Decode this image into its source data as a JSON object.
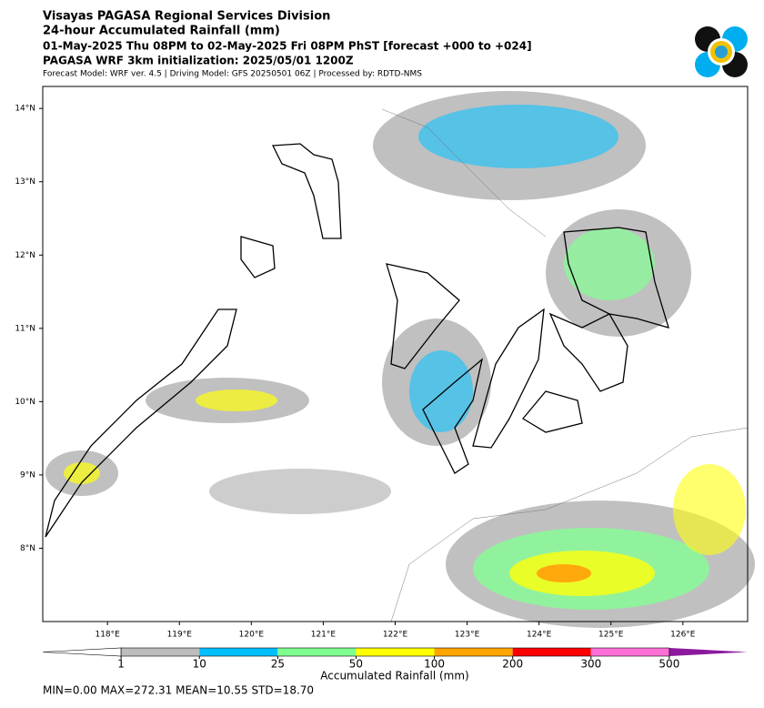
{
  "header": {
    "title": "Visayas PAGASA Regional Services Division",
    "subtitle": "24-hour Accumulated Rainfall (mm)",
    "period": "01-May-2025 Thu 08PM to 02-May-2025 Fri 08PM PhST [forecast +000 to +024]",
    "model_init": "PAGASA WRF 3km initialization: 2025/05/01 1200Z",
    "credits": "Forecast Model: WRF ver. 4.5 | Driving Model: GFS 20250501 06Z | Processed by: RDTD-NMS"
  },
  "map": {
    "xlim": [
      117.1,
      126.9
    ],
    "ylim": [
      7.0,
      14.3
    ],
    "xticks": [
      {
        "value": 118,
        "label": "118°E"
      },
      {
        "value": 119,
        "label": "119°E"
      },
      {
        "value": 120,
        "label": "120°E"
      },
      {
        "value": 121,
        "label": "121°E"
      },
      {
        "value": 122,
        "label": "122°E"
      },
      {
        "value": 123,
        "label": "123°E"
      },
      {
        "value": 124,
        "label": "124°E"
      },
      {
        "value": 125,
        "label": "125°E"
      },
      {
        "value": 126,
        "label": "126°E"
      }
    ],
    "yticks": [
      {
        "value": 8,
        "label": "8°N"
      },
      {
        "value": 9,
        "label": "9°N"
      },
      {
        "value": 10,
        "label": "10°N"
      },
      {
        "value": 11,
        "label": "11°N"
      },
      {
        "value": 12,
        "label": "12°N"
      },
      {
        "value": 13,
        "label": "13°N"
      },
      {
        "value": 14,
        "label": "14°N"
      }
    ]
  },
  "colorbar": {
    "label": "Accumulated Rainfall (mm)",
    "levels": [
      1,
      10,
      25,
      50,
      100,
      200,
      300,
      500
    ],
    "colors": [
      "#bdbdbd",
      "#00bfff",
      "#7fff8f",
      "#ffff00",
      "#ffa500",
      "#ff0000",
      "#ff6fd8"
    ],
    "under_color": "#ffffff",
    "over_color": "#8b1a9e"
  },
  "stats": "MIN=0.00   MAX=272.31   MEAN=10.55   STD=18.70"
}
